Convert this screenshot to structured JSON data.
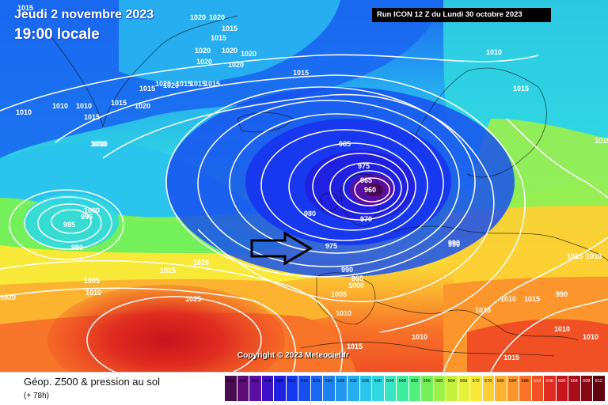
{
  "header": {
    "date_line": "Jeudi 2 novembre 2023",
    "time_line": "19:00 locale",
    "run_info": "Run ICON 12 Z du Lundi 30 octobre 2023"
  },
  "map": {
    "copyright": "Copyright © 2023 Meteociel.fr",
    "isobar_labels": [
      "1015",
      "1020",
      "1020",
      "1015",
      "1020",
      "1020",
      "1020",
      "1020",
      "1020",
      "1015",
      "1015",
      "1020",
      "1020",
      "1015",
      "1015",
      "1015",
      "1020",
      "1015",
      "1010",
      "1010",
      "1015",
      "1010",
      "1015",
      "1015",
      "1010",
      "1010",
      "1010",
      "985",
      "975",
      "965",
      "960",
      "970",
      "980",
      "975",
      "990",
      "990",
      "995",
      "1000",
      "1005",
      "1010",
      "1000",
      "995",
      "985",
      "990",
      "1005",
      "1010",
      "1015",
      "1020",
      "1025",
      "1020",
      "1010",
      "1015",
      "1020",
      "990",
      "1015",
      "990",
      "1010",
      "1015",
      "1010",
      "1015",
      "1015",
      "1010",
      "1010",
      "1015"
    ],
    "arrow_icon": "right-arrow-outline-icon"
  },
  "footer": {
    "field_title": "Géop. Z500 & pression au sol",
    "lead_time": "(+ 78h)"
  },
  "legend": {
    "values": [
      "492",
      "496",
      "500",
      "504",
      "508",
      "512",
      "516",
      "520",
      "524",
      "528",
      "532",
      "536",
      "540",
      "544",
      "548",
      "552",
      "556",
      "560",
      "564",
      "568",
      "572",
      "576",
      "580",
      "584",
      "588",
      "592",
      "596",
      "600",
      "604",
      "608",
      "612"
    ],
    "colors": [
      "#4b0b52",
      "#5c0d78",
      "#5a0fa0",
      "#3c12c8",
      "#2020e0",
      "#1838f0",
      "#1850f0",
      "#1a68f0",
      "#1e82f0",
      "#2298f0",
      "#26aef0",
      "#2ac4ec",
      "#30d8e0",
      "#38e6c4",
      "#40eca0",
      "#50f07c",
      "#74f05a",
      "#9cf04a",
      "#c4f03e",
      "#e4f03a",
      "#f8e838",
      "#fcd034",
      "#fcb430",
      "#fc962c",
      "#f87428",
      "#f05024",
      "#e02c20",
      "#c8141c",
      "#a80c18",
      "#860814",
      "#600410"
    ]
  }
}
